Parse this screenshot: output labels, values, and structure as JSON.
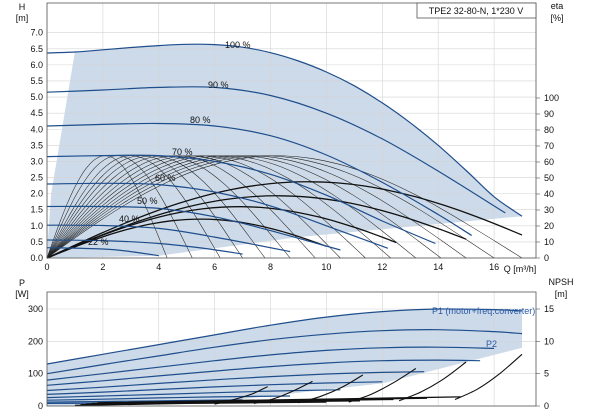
{
  "chart_data": [
    {
      "type": "line",
      "title": "TPE2 32-80-N, 1*230 V",
      "ylabel_left": "H",
      "ylabel_left_unit": "[m]",
      "ylabel_right": "eta",
      "ylabel_right_unit": "[%]",
      "xlabel": "Q [m³/h]",
      "xlim": [
        0,
        17.5
      ],
      "ylim": [
        0,
        7.4
      ],
      "xticks": [
        0,
        2,
        4,
        6,
        8,
        10,
        12,
        14,
        16
      ],
      "yticks": [
        0.0,
        0.5,
        1.0,
        1.5,
        2.0,
        2.5,
        3.0,
        3.5,
        4.0,
        4.5,
        5.0,
        5.5,
        6.0,
        6.5,
        7.0
      ],
      "y2ticks": [
        0,
        10,
        20,
        30,
        40,
        50,
        60,
        70,
        80,
        90,
        100
      ],
      "y2lim": [
        0,
        106
      ],
      "colors": {
        "curve": "#1f4e8c",
        "area": "#c9d8e8",
        "eff": "#222222"
      },
      "series": [
        {
          "name": "100 %",
          "x": [
            0,
            1,
            2,
            3,
            4,
            5,
            6,
            7,
            8,
            9,
            10,
            11,
            12,
            13,
            14,
            15,
            16,
            17
          ],
          "y": [
            6.37,
            6.4,
            6.47,
            6.54,
            6.6,
            6.64,
            6.63,
            6.55,
            6.38,
            6.12,
            5.78,
            5.35,
            4.82,
            4.2,
            3.5,
            2.72,
            1.9,
            1.3
          ]
        },
        {
          "name": "90 %",
          "x": [
            0,
            2,
            4,
            6,
            8,
            10,
            12,
            14,
            16.4
          ],
          "y": [
            5.15,
            5.22,
            5.3,
            5.3,
            5.05,
            4.5,
            3.7,
            2.7,
            1.4
          ]
        },
        {
          "name": "80 %",
          "x": [
            0,
            2,
            4,
            6,
            8,
            10,
            12,
            14,
            15.2
          ],
          "y": [
            4.1,
            4.15,
            4.18,
            4.1,
            3.8,
            3.2,
            2.35,
            1.35,
            0.7
          ]
        },
        {
          "name": "70 %",
          "x": [
            0,
            2,
            4,
            6,
            8,
            10,
            12,
            13.9
          ],
          "y": [
            3.15,
            3.18,
            3.18,
            3.0,
            2.6,
            1.95,
            1.15,
            0.45
          ]
        },
        {
          "name": "60 %",
          "x": [
            0,
            2,
            4,
            6,
            8,
            10,
            12.2
          ],
          "y": [
            2.3,
            2.32,
            2.28,
            2.05,
            1.62,
            1.0,
            0.3
          ]
        },
        {
          "name": "50 %",
          "x": [
            0,
            2,
            4,
            6,
            8,
            10.5
          ],
          "y": [
            1.6,
            1.6,
            1.54,
            1.28,
            0.85,
            0.25
          ]
        },
        {
          "name": "40 %",
          "x": [
            0,
            2,
            4,
            6,
            8.7
          ],
          "y": [
            1.02,
            1.01,
            0.92,
            0.65,
            0.2
          ]
        },
        {
          "name": "",
          "x": [
            0,
            2,
            4,
            5.8,
            7.0
          ],
          "y": [
            0.56,
            0.54,
            0.45,
            0.28,
            0.12
          ]
        },
        {
          "name": "22 %",
          "x": [
            0,
            2,
            3,
            4.0
          ],
          "y": [
            0.32,
            0.28,
            0.2,
            0.07
          ]
        }
      ],
      "eff_peaks": [
        {
          "qmax": 4.3,
          "peak": 69
        },
        {
          "qmax": 5.2,
          "peak": 69
        },
        {
          "qmax": 6.2,
          "peak": 69
        },
        {
          "qmax": 7.0,
          "peak": 69
        },
        {
          "qmax": 7.8,
          "peak": 69
        },
        {
          "qmax": 8.7,
          "peak": 69
        },
        {
          "qmax": 9.6,
          "peak": 69
        },
        {
          "qmax": 10.5,
          "peak": 69
        },
        {
          "qmax": 11.4,
          "peak": 69
        },
        {
          "qmax": 12.3,
          "peak": 69
        },
        {
          "qmax": 13.2,
          "peak": 69
        },
        {
          "qmax": 14.1,
          "peak": 69
        },
        {
          "qmax": 15.0,
          "peak": 69
        },
        {
          "qmax": 16.0,
          "peak": 69
        },
        {
          "qmax": 17.0,
          "peak": 69
        }
      ],
      "eff_bold_peaks": [
        {
          "qmax": 17.0,
          "peak": 49
        },
        {
          "qmax": 15.0,
          "peak": 40
        },
        {
          "qmax": 12.5,
          "peak": 33
        },
        {
          "qmax": 10.0,
          "peak": 25
        }
      ]
    },
    {
      "type": "line",
      "ylabel_left": "P",
      "ylabel_left_unit": "[W]",
      "ylabel_right": "NPSH",
      "ylabel_right_unit": "[m]",
      "ylim": [
        0,
        330
      ],
      "yticks": [
        0,
        100,
        200,
        300
      ],
      "y2ticks": [
        0,
        5,
        10,
        15
      ],
      "y2lim": [
        0,
        16.5
      ],
      "annotations": [
        "P1 (motor+freq.converter)",
        "P2"
      ],
      "series": [
        {
          "name": "",
          "x": [
            0,
            2,
            4,
            6,
            8,
            10,
            12,
            14,
            16,
            17
          ],
          "y": [
            130,
            160,
            190,
            220,
            250,
            275,
            292,
            300,
            298,
            294
          ]
        },
        {
          "name": "",
          "x": [
            0,
            2,
            4,
            6,
            8,
            10,
            12,
            14,
            16,
            17
          ],
          "y": [
            100,
            128,
            155,
            182,
            205,
            222,
            233,
            236,
            230,
            224
          ]
        },
        {
          "name": "",
          "x": [
            0,
            2,
            4,
            6,
            8,
            10,
            12,
            14,
            16
          ],
          "y": [
            80,
            100,
            120,
            140,
            158,
            172,
            180,
            182,
            178
          ]
        },
        {
          "name": "",
          "x": [
            0,
            2,
            4,
            6,
            8,
            10,
            12,
            14,
            15.5
          ],
          "y": [
            64,
            78,
            93,
            108,
            122,
            133,
            140,
            142,
            140
          ]
        },
        {
          "name": "",
          "x": [
            0,
            2,
            4,
            6,
            8,
            10,
            12,
            13.5
          ],
          "y": [
            48,
            58,
            70,
            81,
            91,
            99,
            104,
            106
          ]
        },
        {
          "name": "",
          "x": [
            0,
            2,
            4,
            6,
            8,
            10,
            12
          ],
          "y": [
            36,
            43,
            51,
            59,
            66,
            71,
            75
          ]
        },
        {
          "name": "",
          "x": [
            0,
            2,
            4,
            6,
            8,
            10.5
          ],
          "y": [
            26,
            31,
            36,
            41,
            46,
            50
          ]
        },
        {
          "name": "",
          "x": [
            0,
            2,
            4,
            6,
            8.7
          ],
          "y": [
            18,
            21,
            25,
            28,
            31
          ]
        },
        {
          "name": "",
          "x": [
            0,
            2,
            4,
            5.8,
            7.0
          ],
          "y": [
            12,
            14,
            16,
            18,
            19
          ]
        },
        {
          "name": "",
          "x": [
            0,
            2,
            4
          ],
          "y": [
            8,
            9,
            11
          ]
        }
      ],
      "npsh": [
        {
          "name": "",
          "x": [
            14.6,
            15.4,
            16.2,
            17.0
          ],
          "y": [
            1.0,
            2.6,
            5.0,
            8.0
          ]
        },
        {
          "name": "",
          "x": [
            12.6,
            13.4,
            14.2,
            15.0
          ],
          "y": [
            0.8,
            2.2,
            4.2,
            6.8
          ]
        },
        {
          "name": "",
          "x": [
            10.8,
            11.6,
            12.4,
            13.2
          ],
          "y": [
            0.6,
            1.8,
            3.6,
            5.8
          ]
        },
        {
          "name": "",
          "x": [
            9.0,
            9.8,
            10.6,
            11.3
          ],
          "y": [
            0.5,
            1.5,
            3.0,
            4.8
          ]
        },
        {
          "name": "",
          "x": [
            7.4,
            8.1,
            8.8,
            9.5
          ],
          "y": [
            0.4,
            1.1,
            2.3,
            3.8
          ]
        },
        {
          "name": "",
          "x": [
            6.0,
            6.6,
            7.3,
            7.9
          ],
          "y": [
            0.3,
            0.9,
            1.8,
            3.0
          ]
        }
      ]
    }
  ]
}
